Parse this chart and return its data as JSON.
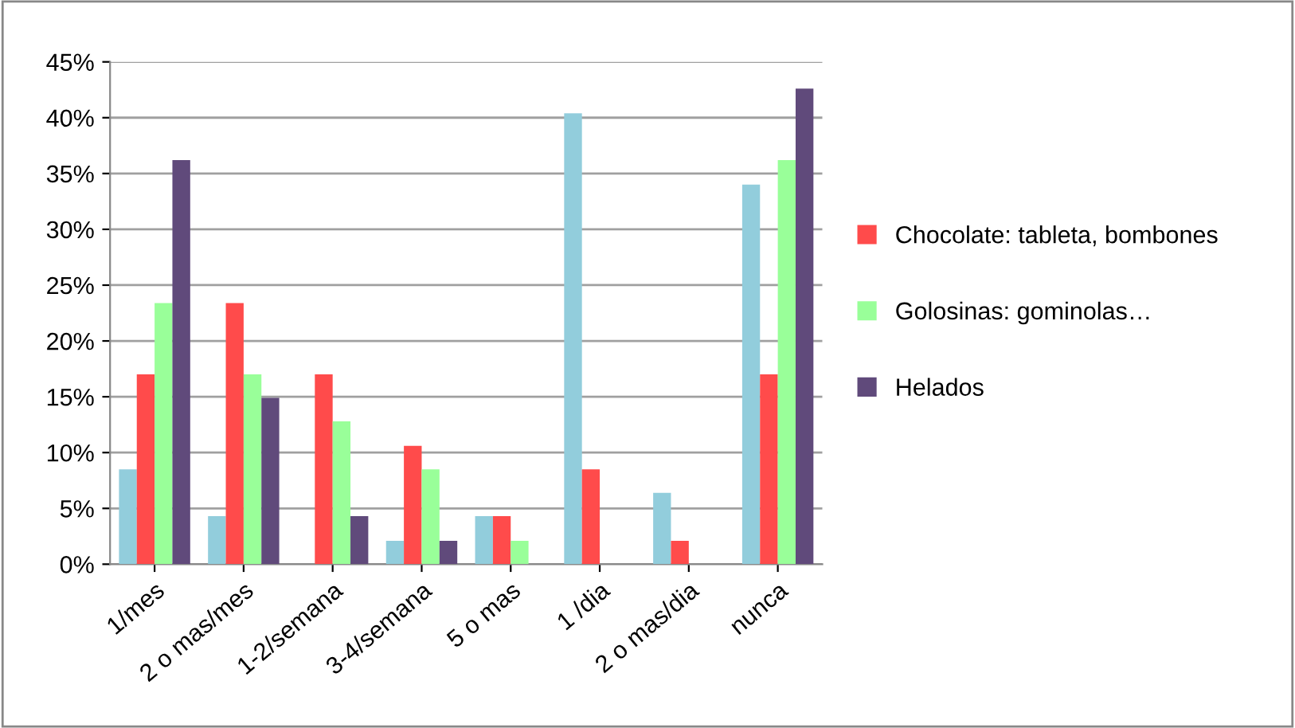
{
  "chart_data": {
    "type": "bar",
    "categories": [
      "1/mes",
      "2 o mas/mes",
      "1-2/semana",
      "3-4/semana",
      "5 o mas",
      "1 /dia",
      "2 o mas/dia",
      "nunca"
    ],
    "series": [
      {
        "color": "#92cddc",
        "values": [
          8.5,
          4.3,
          0,
          2.1,
          4.3,
          40.4,
          6.4,
          34
        ]
      },
      {
        "name": "Chocolate: tableta, bombones",
        "color": "#ff4b4b",
        "values": [
          17,
          23.4,
          17,
          10.6,
          4.3,
          8.5,
          2.1,
          17
        ]
      },
      {
        "name": "Golosinas: gominolas…",
        "color": "#99ff99",
        "values": [
          23.4,
          17,
          12.8,
          8.5,
          2.1,
          0,
          0,
          36.2
        ]
      },
      {
        "name": "Helados",
        "color": "#604a7b",
        "values": [
          36.2,
          14.9,
          4.3,
          2.1,
          0,
          0,
          0,
          42.6
        ]
      }
    ],
    "ylim": [
      0,
      45
    ],
    "yticks": [
      {
        "value": 0,
        "label": "0%"
      },
      {
        "value": 5,
        "label": "5%"
      },
      {
        "value": 10,
        "label": "10%"
      },
      {
        "value": 15,
        "label": "15%"
      },
      {
        "value": 20,
        "label": "20%"
      },
      {
        "value": 25,
        "label": "25%"
      },
      {
        "value": 30,
        "label": "30%"
      },
      {
        "value": 35,
        "label": "35%"
      },
      {
        "value": 40,
        "label": "40%"
      },
      {
        "value": 45,
        "label": "45%"
      }
    ],
    "grid": "y",
    "legend": "right"
  }
}
